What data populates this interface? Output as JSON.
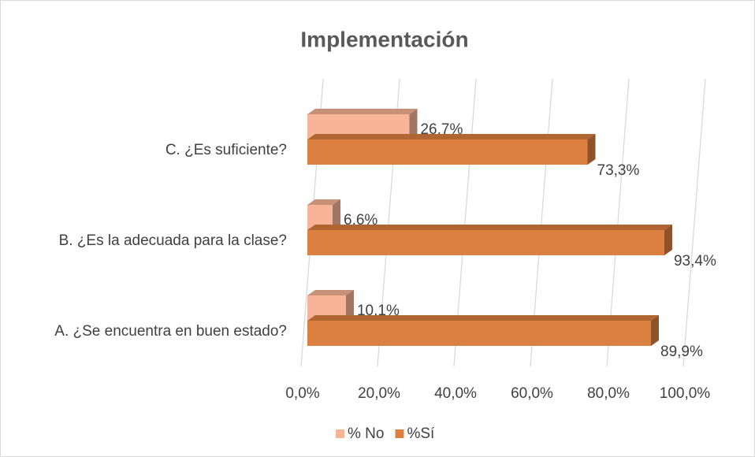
{
  "chart_data": {
    "type": "hbar3d",
    "title": "Implementación",
    "categories": [
      "A. ¿Se encuentra en buen estado?",
      "B. ¿Es la adecuada para la clase?",
      "C. ¿Es suficiente?"
    ],
    "series": [
      {
        "name": "% No",
        "color": "#f8b497",
        "values": [
          10.1,
          6.6,
          26.7
        ],
        "value_labels": [
          "10,1%",
          "6,6%",
          "26,7%"
        ]
      },
      {
        "name": "%Sí",
        "color": "#db8040",
        "values": [
          89.9,
          93.4,
          73.3
        ],
        "value_labels": [
          "89,9%",
          "93,4%",
          "73,3%"
        ]
      }
    ],
    "xlim": [
      0,
      100
    ],
    "xticks": [
      {
        "value": 0,
        "label": "0,0%"
      },
      {
        "value": 20,
        "label": "20,0%"
      },
      {
        "value": 40,
        "label": "40,0%"
      },
      {
        "value": 60,
        "label": "60,0%"
      },
      {
        "value": 80,
        "label": "80,0%"
      },
      {
        "value": 100,
        "label": "100,0%"
      }
    ],
    "grid": true,
    "legend": "bottom"
  }
}
